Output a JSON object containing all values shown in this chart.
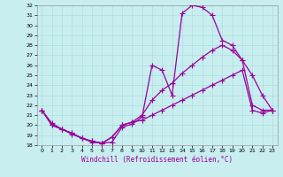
{
  "xlabel": "Windchill (Refroidissement éolien,°C)",
  "bg_color": "#c8eef0",
  "grid_color": "#b0dde0",
  "line_color": "#990099",
  "xlim": [
    -0.5,
    23.5
  ],
  "ylim": [
    18,
    32
  ],
  "xticks": [
    0,
    1,
    2,
    3,
    4,
    5,
    6,
    7,
    8,
    9,
    10,
    11,
    12,
    13,
    14,
    15,
    16,
    17,
    18,
    19,
    20,
    21,
    22,
    23
  ],
  "yticks": [
    18,
    19,
    20,
    21,
    22,
    23,
    24,
    25,
    26,
    27,
    28,
    29,
    30,
    31,
    32
  ],
  "line1_x": [
    0,
    1,
    2,
    3,
    4,
    5,
    6,
    7,
    8,
    9,
    10,
    11,
    12,
    13,
    14,
    15,
    16,
    17,
    18,
    19,
    20,
    21,
    22,
    23
  ],
  "line1_y": [
    21.5,
    20.2,
    19.6,
    19.1,
    18.7,
    18.3,
    18.2,
    18.3,
    19.8,
    20.1,
    20.8,
    26.0,
    25.5,
    23.0,
    31.2,
    32.0,
    31.8,
    31.0,
    28.5,
    28.0,
    26.5,
    25.0,
    23.0,
    21.5
  ],
  "line2_x": [
    0,
    1,
    2,
    3,
    4,
    5,
    6,
    7,
    8,
    9,
    10,
    11,
    12,
    13,
    14,
    15,
    16,
    17,
    18,
    19,
    20,
    21,
    22,
    23
  ],
  "line2_y": [
    21.5,
    20.0,
    19.6,
    19.2,
    18.7,
    18.4,
    18.2,
    18.8,
    20.0,
    20.3,
    21.0,
    22.5,
    23.5,
    24.2,
    25.2,
    26.0,
    26.8,
    27.5,
    28.0,
    27.5,
    26.5,
    22.0,
    21.5,
    21.5
  ],
  "line3_x": [
    0,
    1,
    2,
    3,
    4,
    5,
    6,
    7,
    8,
    9,
    10,
    11,
    12,
    13,
    14,
    15,
    16,
    17,
    18,
    19,
    20,
    21,
    22,
    23
  ],
  "line3_y": [
    21.5,
    20.0,
    19.6,
    19.2,
    18.7,
    18.4,
    18.2,
    18.8,
    20.0,
    20.3,
    20.5,
    21.0,
    21.5,
    22.0,
    22.5,
    23.0,
    23.5,
    24.0,
    24.5,
    25.0,
    25.5,
    21.5,
    21.2,
    21.5
  ]
}
